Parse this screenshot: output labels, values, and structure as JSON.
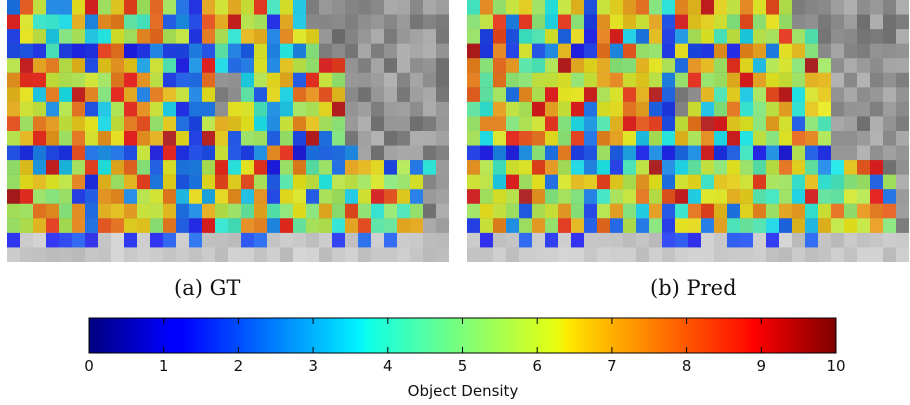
{
  "panels": [
    {
      "id": "gt",
      "caption": "(a) GT"
    },
    {
      "id": "pred",
      "caption": "(b) Pred"
    }
  ],
  "colorbar": {
    "label": "Object Density",
    "colormap": "jet",
    "range": [
      0,
      10
    ],
    "ticks": [
      "0",
      "1",
      "2",
      "3",
      "4",
      "5",
      "6",
      "7",
      "8",
      "9",
      "10"
    ]
  },
  "chart_data": {
    "type": "heatmap",
    "title": "",
    "colorbar_label": "Object Density",
    "value_range": [
      0,
      10
    ],
    "colormap": "jet",
    "overlay_alpha": 0.75,
    "grid_columns": 34,
    "grid_rows": 18,
    "panels": [
      {
        "caption": "(a) GT",
        "dense_region_rows": [
          {
            "rows": [
              0,
              2
            ],
            "cols": [
              0,
              23
            ]
          },
          {
            "rows": [
              2,
              4
            ],
            "cols": [
              0,
              24
            ]
          },
          {
            "rows": [
              4,
              10
            ],
            "cols": [
              0,
              26
            ]
          },
          {
            "rows": [
              10,
              11
            ],
            "cols": [
              0,
              27
            ]
          },
          {
            "rows": [
              11,
              12
            ],
            "cols": [
              0,
              33
            ]
          },
          {
            "rows": [
              12,
              16
            ],
            "cols": [
              0,
              32
            ]
          }
        ],
        "low_region_rows": [
          {
            "rows": [
              16,
              17
            ],
            "cols": [
              0,
              34
            ]
          }
        ],
        "blue_columns": [
          6,
          13,
          14,
          20
        ],
        "blue_rows": [
          3,
          10
        ],
        "gap_cells": [
          [
            5,
            16
          ],
          [
            5,
            17
          ],
          [
            6,
            16
          ],
          [
            6,
            17
          ],
          [
            7,
            16
          ]
        ]
      },
      {
        "caption": "(b) Pred",
        "dense_region_rows": [
          {
            "rows": [
              0,
              2
            ],
            "cols": [
              0,
              25
            ]
          },
          {
            "rows": [
              2,
              4
            ],
            "cols": [
              0,
              27
            ]
          },
          {
            "rows": [
              4,
              11
            ],
            "cols": [
              0,
              28
            ]
          },
          {
            "rows": [
              11,
              12
            ],
            "cols": [
              0,
              32
            ]
          },
          {
            "rows": [
              12,
              16
            ],
            "cols": [
              0,
              33
            ]
          }
        ],
        "low_region_rows": [
          {
            "rows": [
              16,
              17
            ],
            "cols": [
              0,
              34
            ]
          }
        ],
        "blue_columns": [
          9,
          15
        ],
        "blue_rows": [
          3,
          10
        ],
        "gap_cells": [
          [
            6,
            16
          ],
          [
            6,
            17
          ],
          [
            7,
            16
          ]
        ]
      }
    ]
  }
}
